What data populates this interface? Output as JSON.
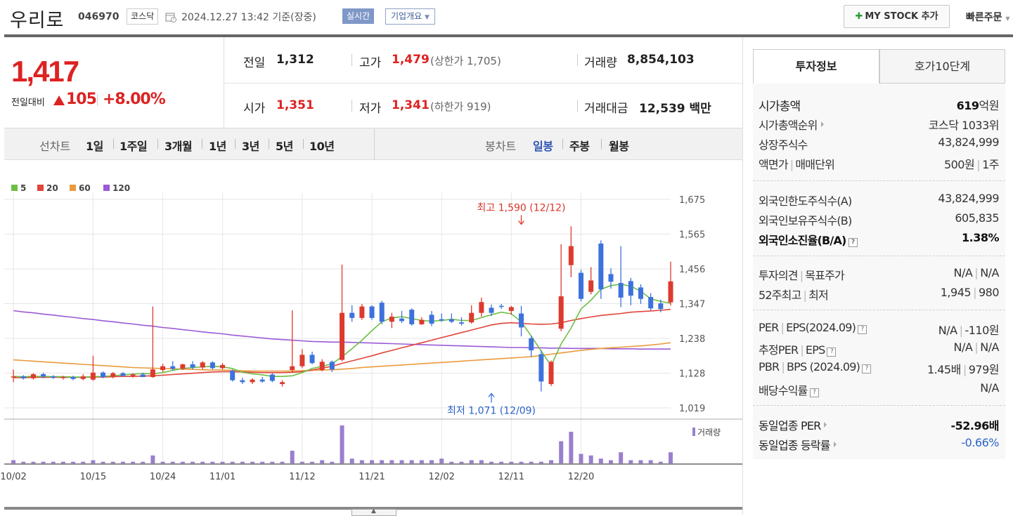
{
  "header": {
    "stock_name": "우리로",
    "stock_code": "046970",
    "market": "코스닥",
    "timestamp": "2024.12.27 13:42  기준(장중)",
    "realtime": "실시간",
    "company_overview": "기업개요",
    "mystock_label": "MY STOCK 추가",
    "quick_order": "빠른주문"
  },
  "price": {
    "current": "1,417",
    "change_label": "전일대비",
    "change_value": "105",
    "change_pct": "+8.00%",
    "prev_close_label": "전일",
    "prev_close": "1,312",
    "high_label": "고가",
    "high": "1,479",
    "upper_limit": "(상한가 1,705)",
    "volume_label": "거래량",
    "volume": "8,854,103",
    "open_label": "시가",
    "open": "1,351",
    "low_label": "저가",
    "low": "1,341",
    "lower_limit": "(하한가 919)",
    "value_label": "거래대금",
    "value": "12,539 백만"
  },
  "period_bar": {
    "line_chart_label": "선차트",
    "periods": [
      "1일",
      "1주일",
      "3개월",
      "1년",
      "3년",
      "5년",
      "10년"
    ],
    "candle_label": "봉차트",
    "candle_periods": [
      "일봉",
      "주봉",
      "월봉"
    ]
  },
  "colors": {
    "up": "#dd3a2e",
    "down": "#3d72dd",
    "ma5": "#6dbf45",
    "ma20": "#e0453a",
    "ma60": "#ea9a3c",
    "ma120": "#9a5ad6",
    "volume": "#9a7fce"
  },
  "chart_data": {
    "type": "candlestick",
    "legend": [
      "5",
      "20",
      "60",
      "120"
    ],
    "y_ticks": [
      "1,675",
      "1,565",
      "1,456",
      "1,347",
      "1,238",
      "1,128",
      "1,019"
    ],
    "ylim": [
      1019,
      1675
    ],
    "x_ticks": [
      "10/02",
      "10/15",
      "10/24",
      "11/01",
      "11/12",
      "11/21",
      "12/02",
      "12/11",
      "12/20"
    ],
    "x_tick_index": [
      0,
      8,
      15,
      21,
      29,
      36,
      43,
      50,
      57
    ],
    "high_annotation": "최고 1,590 (12/12)",
    "high_annotation_index": 51,
    "high_value": 1590,
    "low_annotation": "최저 1,071 (12/09)",
    "low_annotation_index": 48,
    "low_value": 1071,
    "volume_label": "거래량",
    "candles": [
      {
        "o": 1115,
        "h": 1140,
        "l": 1100,
        "c": 1118
      },
      {
        "o": 1118,
        "h": 1122,
        "l": 1108,
        "c": 1112
      },
      {
        "o": 1112,
        "h": 1128,
        "l": 1108,
        "c": 1125
      },
      {
        "o": 1125,
        "h": 1130,
        "l": 1112,
        "c": 1118
      },
      {
        "o": 1118,
        "h": 1122,
        "l": 1110,
        "c": 1114
      },
      {
        "o": 1114,
        "h": 1120,
        "l": 1108,
        "c": 1116
      },
      {
        "o": 1116,
        "h": 1120,
        "l": 1106,
        "c": 1110
      },
      {
        "o": 1110,
        "h": 1125,
        "l": 1106,
        "c": 1118
      },
      {
        "o": 1108,
        "h": 1183,
        "l": 1104,
        "c": 1130
      },
      {
        "o": 1130,
        "h": 1134,
        "l": 1112,
        "c": 1116
      },
      {
        "o": 1116,
        "h": 1132,
        "l": 1112,
        "c": 1128
      },
      {
        "o": 1128,
        "h": 1132,
        "l": 1116,
        "c": 1120
      },
      {
        "o": 1120,
        "h": 1128,
        "l": 1114,
        "c": 1124
      },
      {
        "o": 1124,
        "h": 1130,
        "l": 1118,
        "c": 1116
      },
      {
        "o": 1116,
        "h": 1338,
        "l": 1114,
        "c": 1140
      },
      {
        "o": 1138,
        "h": 1158,
        "l": 1132,
        "c": 1150
      },
      {
        "o": 1150,
        "h": 1166,
        "l": 1136,
        "c": 1142
      },
      {
        "o": 1142,
        "h": 1158,
        "l": 1138,
        "c": 1156
      },
      {
        "o": 1156,
        "h": 1166,
        "l": 1140,
        "c": 1146
      },
      {
        "o": 1146,
        "h": 1166,
        "l": 1140,
        "c": 1162
      },
      {
        "o": 1162,
        "h": 1166,
        "l": 1140,
        "c": 1144
      },
      {
        "o": 1144,
        "h": 1160,
        "l": 1140,
        "c": 1154
      },
      {
        "o": 1136,
        "h": 1140,
        "l": 1102,
        "c": 1106
      },
      {
        "o": 1106,
        "h": 1114,
        "l": 1094,
        "c": 1100
      },
      {
        "o": 1100,
        "h": 1112,
        "l": 1094,
        "c": 1108
      },
      {
        "o": 1108,
        "h": 1116,
        "l": 1098,
        "c": 1102
      },
      {
        "o": 1124,
        "h": 1128,
        "l": 1100,
        "c": 1104
      },
      {
        "o": 1094,
        "h": 1106,
        "l": 1086,
        "c": 1100
      },
      {
        "o": 1138,
        "h": 1326,
        "l": 1130,
        "c": 1150
      },
      {
        "o": 1150,
        "h": 1204,
        "l": 1144,
        "c": 1186
      },
      {
        "o": 1186,
        "h": 1196,
        "l": 1156,
        "c": 1160
      },
      {
        "o": 1138,
        "h": 1172,
        "l": 1134,
        "c": 1164
      },
      {
        "o": 1164,
        "h": 1168,
        "l": 1132,
        "c": 1140
      },
      {
        "o": 1170,
        "h": 1470,
        "l": 1166,
        "c": 1318
      },
      {
        "o": 1318,
        "h": 1342,
        "l": 1290,
        "c": 1302
      },
      {
        "o": 1302,
        "h": 1346,
        "l": 1296,
        "c": 1338
      },
      {
        "o": 1338,
        "h": 1342,
        "l": 1296,
        "c": 1302
      },
      {
        "o": 1350,
        "h": 1356,
        "l": 1282,
        "c": 1290
      },
      {
        "o": 1290,
        "h": 1318,
        "l": 1270,
        "c": 1306
      },
      {
        "o": 1300,
        "h": 1324,
        "l": 1286,
        "c": 1292
      },
      {
        "o": 1328,
        "h": 1332,
        "l": 1278,
        "c": 1282
      },
      {
        "o": 1282,
        "h": 1304,
        "l": 1280,
        "c": 1296
      },
      {
        "o": 1312,
        "h": 1324,
        "l": 1276,
        "c": 1284
      },
      {
        "o": 1298,
        "h": 1316,
        "l": 1290,
        "c": 1294
      },
      {
        "o": 1298,
        "h": 1316,
        "l": 1286,
        "c": 1290
      },
      {
        "o": 1288,
        "h": 1304,
        "l": 1278,
        "c": 1284
      },
      {
        "o": 1288,
        "h": 1342,
        "l": 1284,
        "c": 1318
      },
      {
        "o": 1318,
        "h": 1366,
        "l": 1306,
        "c": 1352
      },
      {
        "o": 1334,
        "h": 1344,
        "l": 1308,
        "c": 1318
      },
      {
        "o": 1340,
        "h": 1346,
        "l": 1330,
        "c": 1338
      },
      {
        "o": 1324,
        "h": 1340,
        "l": 1312,
        "c": 1336
      },
      {
        "o": 1316,
        "h": 1340,
        "l": 1244,
        "c": 1272
      },
      {
        "o": 1238,
        "h": 1246,
        "l": 1180,
        "c": 1200
      },
      {
        "o": 1188,
        "h": 1200,
        "l": 1071,
        "c": 1102
      },
      {
        "o": 1094,
        "h": 1168,
        "l": 1088,
        "c": 1164
      },
      {
        "o": 1268,
        "h": 1534,
        "l": 1260,
        "c": 1370
      },
      {
        "o": 1468,
        "h": 1590,
        "l": 1430,
        "c": 1528
      },
      {
        "o": 1444,
        "h": 1454,
        "l": 1354,
        "c": 1362
      },
      {
        "o": 1384,
        "h": 1462,
        "l": 1376,
        "c": 1420
      },
      {
        "o": 1536,
        "h": 1546,
        "l": 1362,
        "c": 1392
      },
      {
        "o": 1440,
        "h": 1458,
        "l": 1394,
        "c": 1416
      },
      {
        "o": 1412,
        "h": 1528,
        "l": 1336,
        "c": 1366
      },
      {
        "o": 1418,
        "h": 1428,
        "l": 1342,
        "c": 1372
      },
      {
        "o": 1398,
        "h": 1408,
        "l": 1346,
        "c": 1362
      },
      {
        "o": 1368,
        "h": 1380,
        "l": 1326,
        "c": 1332
      },
      {
        "o": 1348,
        "h": 1360,
        "l": 1320,
        "c": 1330
      },
      {
        "o": 1351,
        "h": 1479,
        "l": 1341,
        "c": 1417
      }
    ],
    "ma5": [
      1118,
      1117,
      1118,
      1118,
      1117,
      1117,
      1116,
      1116,
      1117,
      1118,
      1120,
      1123,
      1125,
      1127,
      1126,
      1130,
      1137,
      1143,
      1146,
      1148,
      1150,
      1148,
      1143,
      1131,
      1126,
      1123,
      1118,
      1118,
      1120,
      1130,
      1143,
      1150,
      1158,
      1180,
      1205,
      1232,
      1262,
      1290,
      1302,
      1306,
      1300,
      1294,
      1292,
      1294,
      1298,
      1294,
      1294,
      1303,
      1312,
      1320,
      1315,
      1290,
      1245,
      1198,
      1152,
      1220,
      1270,
      1330,
      1358,
      1392,
      1404,
      1408,
      1402,
      1386,
      1362,
      1354,
      1348
    ],
    "ma20": [
      1114,
      1114,
      1115,
      1115,
      1115,
      1115,
      1115,
      1115,
      1116,
      1116,
      1117,
      1118,
      1118,
      1119,
      1120,
      1122,
      1124,
      1126,
      1128,
      1130,
      1132,
      1133,
      1133,
      1132,
      1131,
      1130,
      1130,
      1130,
      1131,
      1133,
      1138,
      1144,
      1150,
      1159,
      1167,
      1175,
      1183,
      1192,
      1200,
      1208,
      1216,
      1224,
      1232,
      1240,
      1248,
      1256,
      1264,
      1272,
      1280,
      1285,
      1287,
      1285,
      1283,
      1282,
      1283,
      1287,
      1294,
      1300,
      1305,
      1310,
      1313,
      1316,
      1320,
      1322,
      1324,
      1326,
      1329
    ],
    "ma60": [
      1170,
      1168,
      1166,
      1164,
      1162,
      1160,
      1158,
      1156,
      1154,
      1152,
      1150,
      1148,
      1146,
      1145,
      1144,
      1143,
      1142,
      1141,
      1140,
      1139,
      1138,
      1138,
      1137,
      1136,
      1135,
      1135,
      1135,
      1135,
      1135,
      1136,
      1137,
      1138,
      1139,
      1141,
      1143,
      1146,
      1148,
      1150,
      1152,
      1154,
      1156,
      1158,
      1160,
      1162,
      1164,
      1166,
      1168,
      1170,
      1172,
      1174,
      1176,
      1178,
      1180,
      1184,
      1188,
      1192,
      1196,
      1200,
      1203,
      1206,
      1208,
      1210,
      1212,
      1214,
      1217,
      1220,
      1224
    ],
    "ma120": [
      1325,
      1321,
      1318,
      1314,
      1311,
      1307,
      1304,
      1300,
      1297,
      1293,
      1290,
      1286,
      1283,
      1279,
      1276,
      1272,
      1269,
      1265,
      1262,
      1258,
      1255,
      1252,
      1248,
      1245,
      1242,
      1239,
      1236,
      1234,
      1232,
      1230,
      1228,
      1227,
      1226,
      1226,
      1225,
      1224,
      1223,
      1222,
      1221,
      1220,
      1219,
      1218,
      1217,
      1216,
      1215,
      1214,
      1213,
      1212,
      1211,
      1210,
      1209,
      1209,
      1208,
      1208,
      1207,
      1207,
      1206,
      1206,
      1206,
      1206,
      1205,
      1205,
      1205,
      1204,
      1204,
      1204,
      1204
    ],
    "volume": [
      2,
      1,
      1,
      1,
      1,
      1,
      1,
      1,
      2,
      1,
      1,
      1,
      1,
      1,
      5,
      1,
      1,
      1,
      1,
      1,
      1,
      1,
      1,
      1,
      1,
      1,
      1,
      1,
      8,
      1,
      1,
      2,
      1,
      24,
      3,
      2,
      2,
      2,
      2,
      2,
      2,
      2,
      2,
      3,
      1,
      1,
      2,
      2,
      1,
      1,
      1,
      1,
      1,
      1,
      2,
      14,
      20,
      6,
      5,
      3,
      2,
      7,
      2,
      2,
      2,
      1,
      7
    ]
  },
  "right_panel": {
    "tab_invest": "투자정보",
    "tab_orderbook": "호가10단계",
    "rows1": [
      {
        "label": "시가총액",
        "value_num": "619",
        "value_unit": "억원"
      },
      {
        "label": "시가총액순위",
        "value": "코스닥 1033위"
      },
      {
        "label": "상장주식수",
        "value": "43,824,999"
      },
      {
        "label": "액면가",
        "label2": "매매단위",
        "value": "500원",
        "value2": "1주"
      }
    ],
    "rows2": [
      {
        "label": "외국인한도주식수(A)",
        "value": "43,824,999"
      },
      {
        "label": "외국인보유주식수(B)",
        "value": "605,835"
      },
      {
        "label": "외국인소진율(B/A)",
        "value": "1.38%"
      }
    ],
    "rows3": [
      {
        "label": "투자의견",
        "label2": "목표주가",
        "value": "N/A",
        "value2": "N/A"
      },
      {
        "label": "52주최고",
        "label2": "최저",
        "value": "1,945",
        "value2": "980"
      }
    ],
    "rows4": [
      {
        "label": "PER",
        "label2": "EPS(2024.09)",
        "value": "N/A",
        "value2": "-110원"
      },
      {
        "label": "추정PER",
        "label2": "EPS",
        "value": "N/A",
        "value2": "N/A"
      },
      {
        "label": "PBR",
        "label2": "BPS (2024.09)",
        "value": "1.45배",
        "value2": "979원"
      },
      {
        "label": "배당수익률",
        "value": "N/A"
      }
    ],
    "rows5": [
      {
        "label": "동일업종 PER",
        "value": "-52.96배"
      },
      {
        "label": "동일업종 등락률",
        "value": "-0.66%"
      }
    ]
  }
}
